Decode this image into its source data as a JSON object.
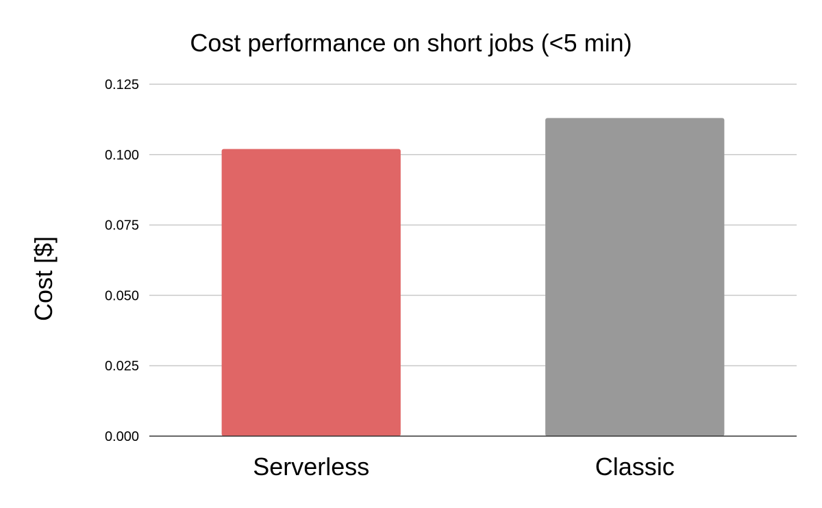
{
  "chart_data": {
    "type": "bar",
    "title": "Cost performance on short jobs (<5 min)",
    "xlabel": "",
    "ylabel": "Cost [$]",
    "categories": [
      "Serverless",
      "Classic"
    ],
    "values": [
      0.102,
      0.113
    ],
    "colors": [
      "#e06666",
      "#999999"
    ],
    "ylim": [
      0,
      0.125
    ],
    "yticks": [
      "0.000",
      "0.025",
      "0.050",
      "0.075",
      "0.100",
      "0.125"
    ],
    "grid": true,
    "legend": "none"
  }
}
